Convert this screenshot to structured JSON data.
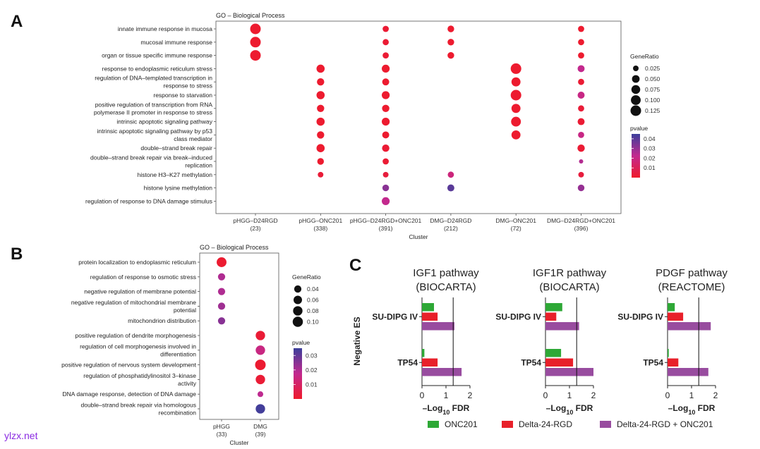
{
  "panel_letters": {
    "a": "A",
    "b": "B",
    "c": "C"
  },
  "watermark": "ylzx.net",
  "chart_data": [
    {
      "type": "scatter",
      "title": "GO – Biological Process",
      "xlabel": "Cluster",
      "ylabel": "",
      "categories": [
        {
          "name": "pHGG–D24RGD",
          "count": "(23)"
        },
        {
          "name": "pHGG–ONC201",
          "count": "(338)"
        },
        {
          "name": "pHGG–D24RGD+ONC201",
          "count": "(391)"
        },
        {
          "name": "DMG–D24RGD",
          "count": "(212)"
        },
        {
          "name": "DMG–ONC201",
          "count": "(72)"
        },
        {
          "name": "DMG–D24RGD+ONC201",
          "count": "(396)"
        }
      ],
      "terms": [
        [
          "innate immune response in mucosa"
        ],
        [
          "mucosal immune response"
        ],
        [
          "organ or tissue specific immune response"
        ],
        [
          "response to endoplasmic reticulum stress"
        ],
        [
          "regulation of DNA–templated transcription in",
          "response to stress"
        ],
        [
          "response to starvation"
        ],
        [
          "positive regulation of transcription from RNA",
          "polymerase II promoter in response to stress"
        ],
        [
          "intrinsic apoptotic signaling pathway"
        ],
        [
          "intrinsic apoptotic signaling pathway by p53",
          "class mediator"
        ],
        [
          "double–strand break repair"
        ],
        [
          "double–strand break repair via break–induced",
          "replication"
        ],
        [
          "histone H3–K27 methylation"
        ],
        [
          "histone lysine methylation"
        ],
        [
          "regulation of response to DNA damage stimulus"
        ]
      ],
      "points": [
        {
          "term": 0,
          "cluster": 0,
          "gene_ratio": 0.125,
          "pvalue": 0.001
        },
        {
          "term": 1,
          "cluster": 0,
          "gene_ratio": 0.125,
          "pvalue": 0.001
        },
        {
          "term": 2,
          "cluster": 0,
          "gene_ratio": 0.125,
          "pvalue": 0.001
        },
        {
          "term": 3,
          "cluster": 1,
          "gene_ratio": 0.06,
          "pvalue": 0.001
        },
        {
          "term": 4,
          "cluster": 1,
          "gene_ratio": 0.045,
          "pvalue": 0.001
        },
        {
          "term": 5,
          "cluster": 1,
          "gene_ratio": 0.06,
          "pvalue": 0.001
        },
        {
          "term": 6,
          "cluster": 1,
          "gene_ratio": 0.045,
          "pvalue": 0.001
        },
        {
          "term": 7,
          "cluster": 1,
          "gene_ratio": 0.06,
          "pvalue": 0.001
        },
        {
          "term": 8,
          "cluster": 1,
          "gene_ratio": 0.045,
          "pvalue": 0.001
        },
        {
          "term": 9,
          "cluster": 1,
          "gene_ratio": 0.06,
          "pvalue": 0.001
        },
        {
          "term": 10,
          "cluster": 1,
          "gene_ratio": 0.035,
          "pvalue": 0.001
        },
        {
          "term": 11,
          "cluster": 1,
          "gene_ratio": 0.025,
          "pvalue": 0.003
        },
        {
          "term": 0,
          "cluster": 2,
          "gene_ratio": 0.03,
          "pvalue": 0.002
        },
        {
          "term": 1,
          "cluster": 2,
          "gene_ratio": 0.03,
          "pvalue": 0.002
        },
        {
          "term": 2,
          "cluster": 2,
          "gene_ratio": 0.03,
          "pvalue": 0.002
        },
        {
          "term": 3,
          "cluster": 2,
          "gene_ratio": 0.055,
          "pvalue": 0.001
        },
        {
          "term": 4,
          "cluster": 2,
          "gene_ratio": 0.04,
          "pvalue": 0.001
        },
        {
          "term": 5,
          "cluster": 2,
          "gene_ratio": 0.055,
          "pvalue": 0.001
        },
        {
          "term": 6,
          "cluster": 2,
          "gene_ratio": 0.045,
          "pvalue": 0.001
        },
        {
          "term": 7,
          "cluster": 2,
          "gene_ratio": 0.055,
          "pvalue": 0.001
        },
        {
          "term": 8,
          "cluster": 2,
          "gene_ratio": 0.04,
          "pvalue": 0.001
        },
        {
          "term": 9,
          "cluster": 2,
          "gene_ratio": 0.045,
          "pvalue": 0.002
        },
        {
          "term": 10,
          "cluster": 2,
          "gene_ratio": 0.03,
          "pvalue": 0.002
        },
        {
          "term": 11,
          "cluster": 2,
          "gene_ratio": 0.025,
          "pvalue": 0.004
        },
        {
          "term": 12,
          "cluster": 2,
          "gene_ratio": 0.035,
          "pvalue": 0.032
        },
        {
          "term": 13,
          "cluster": 2,
          "gene_ratio": 0.055,
          "pvalue": 0.022
        },
        {
          "term": 0,
          "cluster": 3,
          "gene_ratio": 0.035,
          "pvalue": 0.001
        },
        {
          "term": 1,
          "cluster": 3,
          "gene_ratio": 0.035,
          "pvalue": 0.001
        },
        {
          "term": 2,
          "cluster": 3,
          "gene_ratio": 0.035,
          "pvalue": 0.001
        },
        {
          "term": 11,
          "cluster": 3,
          "gene_ratio": 0.03,
          "pvalue": 0.018
        },
        {
          "term": 12,
          "cluster": 3,
          "gene_ratio": 0.04,
          "pvalue": 0.04
        },
        {
          "term": 3,
          "cluster": 4,
          "gene_ratio": 0.125,
          "pvalue": 0.001
        },
        {
          "term": 4,
          "cluster": 4,
          "gene_ratio": 0.08,
          "pvalue": 0.001
        },
        {
          "term": 5,
          "cluster": 4,
          "gene_ratio": 0.125,
          "pvalue": 0.001
        },
        {
          "term": 6,
          "cluster": 4,
          "gene_ratio": 0.08,
          "pvalue": 0.001
        },
        {
          "term": 7,
          "cluster": 4,
          "gene_ratio": 0.1,
          "pvalue": 0.001
        },
        {
          "term": 8,
          "cluster": 4,
          "gene_ratio": 0.08,
          "pvalue": 0.001
        },
        {
          "term": 0,
          "cluster": 5,
          "gene_ratio": 0.03,
          "pvalue": 0.001
        },
        {
          "term": 1,
          "cluster": 5,
          "gene_ratio": 0.03,
          "pvalue": 0.001
        },
        {
          "term": 2,
          "cluster": 5,
          "gene_ratio": 0.03,
          "pvalue": 0.001
        },
        {
          "term": 3,
          "cluster": 5,
          "gene_ratio": 0.04,
          "pvalue": 0.022
        },
        {
          "term": 4,
          "cluster": 5,
          "gene_ratio": 0.03,
          "pvalue": 0.002
        },
        {
          "term": 5,
          "cluster": 5,
          "gene_ratio": 0.04,
          "pvalue": 0.02
        },
        {
          "term": 6,
          "cluster": 5,
          "gene_ratio": 0.03,
          "pvalue": 0.003
        },
        {
          "term": 7,
          "cluster": 5,
          "gene_ratio": 0.04,
          "pvalue": 0.002
        },
        {
          "term": 8,
          "cluster": 5,
          "gene_ratio": 0.03,
          "pvalue": 0.02
        },
        {
          "term": 9,
          "cluster": 5,
          "gene_ratio": 0.045,
          "pvalue": 0.002
        },
        {
          "term": 10,
          "cluster": 5,
          "gene_ratio": 0.02,
          "pvalue": 0.025
        },
        {
          "term": 11,
          "cluster": 5,
          "gene_ratio": 0.025,
          "pvalue": 0.004
        },
        {
          "term": 12,
          "cluster": 5,
          "gene_ratio": 0.035,
          "pvalue": 0.03
        }
      ],
      "legend_size": {
        "title": "GeneRatio",
        "values": [
          0.025,
          0.05,
          0.075,
          0.1,
          0.125
        ],
        "labels": [
          "0.025",
          "0.050",
          "0.075",
          "0.100",
          "0.125"
        ]
      },
      "legend_color": {
        "title": "pvalue",
        "ticks": [
          0.01,
          0.02,
          0.03,
          0.04
        ],
        "labels": [
          "0.01",
          "0.02",
          "0.03",
          "0.04"
        ],
        "range": [
          0,
          0.045
        ]
      },
      "colors": {
        "low": "#ef1a2b",
        "mid": "#c2298f",
        "high": "#3b3f9b"
      }
    },
    {
      "type": "scatter",
      "title": "GO – Biological Process",
      "xlabel": "Cluster",
      "ylabel": "",
      "categories": [
        {
          "name": "pHGG",
          "count": "(33)"
        },
        {
          "name": "DMG",
          "count": "(39)"
        }
      ],
      "terms": [
        [
          "protein localization to endoplasmic reticulum"
        ],
        [
          "regulation of response to osmotic stress"
        ],
        [
          "negative regulation of membrane potential"
        ],
        [
          "negative regulation of mitochondrial membrane",
          "potential"
        ],
        [
          "mitochondrion distribution"
        ],
        [
          "positive regulation of dendrite morphogenesis"
        ],
        [
          "regulation of cell morphogenesis involved in",
          "differentiation"
        ],
        [
          "positive regulation of nervous system development"
        ],
        [
          "regulation of phosphatidylinositol 3–kinase",
          "activity"
        ],
        [
          "DNA damage response, detection of DNA damage"
        ],
        [
          "double–strand break repair via homologous",
          "recombination"
        ]
      ],
      "points": [
        {
          "term": 0,
          "cluster": 0,
          "gene_ratio": 0.09,
          "pvalue": 0.001
        },
        {
          "term": 1,
          "cluster": 0,
          "gene_ratio": 0.04,
          "pvalue": 0.02
        },
        {
          "term": 2,
          "cluster": 0,
          "gene_ratio": 0.04,
          "pvalue": 0.02
        },
        {
          "term": 3,
          "cluster": 0,
          "gene_ratio": 0.04,
          "pvalue": 0.022
        },
        {
          "term": 4,
          "cluster": 0,
          "gene_ratio": 0.04,
          "pvalue": 0.025
        },
        {
          "term": 5,
          "cluster": 1,
          "gene_ratio": 0.08,
          "pvalue": 0.002
        },
        {
          "term": 6,
          "cluster": 1,
          "gene_ratio": 0.08,
          "pvalue": 0.015
        },
        {
          "term": 7,
          "cluster": 1,
          "gene_ratio": 0.11,
          "pvalue": 0.001
        },
        {
          "term": 8,
          "cluster": 1,
          "gene_ratio": 0.08,
          "pvalue": 0.002
        },
        {
          "term": 9,
          "cluster": 1,
          "gene_ratio": 0.025,
          "pvalue": 0.018
        },
        {
          "term": 10,
          "cluster": 1,
          "gene_ratio": 0.08,
          "pvalue": 0.034
        }
      ],
      "legend_size": {
        "title": "GeneRatio",
        "values": [
          0.04,
          0.06,
          0.08,
          0.1
        ],
        "labels": [
          "0.04",
          "0.06",
          "0.08",
          "0.10"
        ]
      },
      "legend_color": {
        "title": "pvalue",
        "ticks": [
          0.01,
          0.02,
          0.03
        ],
        "labels": [
          "0.01",
          "0.02",
          "0.03"
        ],
        "range": [
          0,
          0.035
        ]
      },
      "colors": {
        "low": "#ef1a2b",
        "mid": "#c2298f",
        "high": "#3b3f9b"
      }
    },
    {
      "type": "bar",
      "orientation": "horizontal",
      "ylabel": "Negative ES",
      "xlabel": "–Log10 FDR",
      "xlabel_main": "–Log",
      "xlabel_sub": "10",
      "xlabel_tail": " FDR",
      "xlim": [
        0,
        2
      ],
      "xticks": [
        0,
        1,
        2
      ],
      "xtick_labels": [
        "0",
        "1",
        "2"
      ],
      "reference_line": 1.3,
      "groups": [
        "SU-DIPG IV",
        "TP54"
      ],
      "series": [
        {
          "name": "ONC201",
          "color": "#2ea836"
        },
        {
          "name": "Delta-24-RGD",
          "color": "#e8202a"
        },
        {
          "name": "Delta-24-RGD + ONC201",
          "color": "#984c9f"
        }
      ],
      "panels": [
        {
          "title_lines": [
            "IGF1 pathway",
            "(BIOCARTA)"
          ],
          "values": {
            "SU-DIPG IV": [
              0.5,
              0.65,
              1.35
            ],
            "TP54": [
              0.1,
              0.65,
              1.65
            ]
          }
        },
        {
          "title_lines": [
            "IGF1R pathway",
            "(BIOCARTA)"
          ],
          "values": {
            "SU-DIPG IV": [
              0.7,
              0.45,
              1.4
            ],
            "TP54": [
              0.65,
              1.15,
              2.0
            ]
          }
        },
        {
          "title_lines": [
            "PDGF pathway",
            "(REACTOME)"
          ],
          "values": {
            "SU-DIPG IV": [
              0.3,
              0.65,
              1.8
            ],
            "TP54": [
              0.05,
              0.45,
              1.7
            ]
          }
        }
      ]
    }
  ]
}
